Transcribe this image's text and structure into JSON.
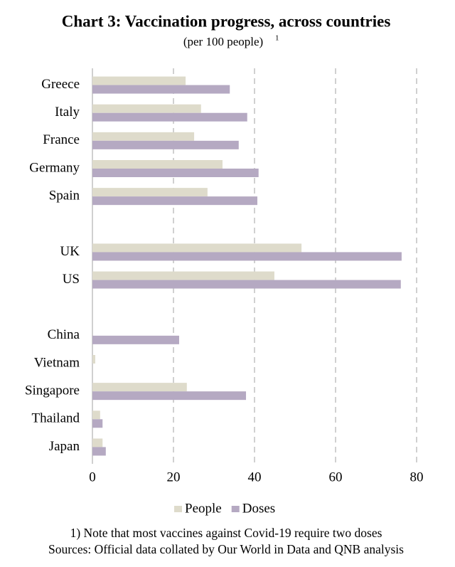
{
  "chart_data": {
    "type": "hbar",
    "title": "Chart 3: Vaccination progress, across countries",
    "subtitle": "(per 100 people)",
    "subtitle_note": "1",
    "categories": [
      "Greece",
      "Italy",
      "France",
      "Germany",
      "Spain",
      null,
      "UK",
      "US",
      null,
      "China",
      "Vietnam",
      "Singapore",
      "Thailand",
      "Japan"
    ],
    "series": [
      {
        "name": "People",
        "color": "#dedbcb",
        "values": [
          23,
          26.8,
          25.1,
          32.1,
          28.4,
          null,
          51.6,
          44.9,
          null,
          null,
          0.7,
          23.3,
          1.9,
          2.5
        ]
      },
      {
        "name": "Doses",
        "color": "#b5a9c2",
        "values": [
          33.9,
          38.2,
          36.1,
          41,
          40.7,
          null,
          76.3,
          76.1,
          null,
          21.4,
          null,
          37.9,
          2.5,
          3.3
        ]
      }
    ],
    "xlim": [
      0,
      80
    ],
    "xticks": [
      0,
      20,
      40,
      60,
      80
    ],
    "grid": true,
    "legend": "bottom",
    "footnotes": [
      "1) Note that most vaccines against Covid-19 require two doses",
      "Sources: Official data collated by Our World in Data and QNB analysis"
    ]
  }
}
